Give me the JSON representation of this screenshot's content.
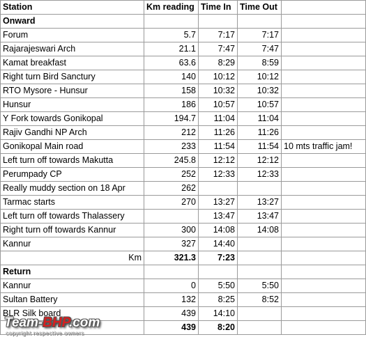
{
  "table": {
    "headers": [
      "Station",
      "Km reading",
      "Time In",
      "Time Out",
      ""
    ],
    "rows": [
      {
        "type": "section",
        "station": "Onward",
        "km": "",
        "in": "",
        "out": "",
        "note": ""
      },
      {
        "type": "data",
        "station": "Forum",
        "km": "5.7",
        "in": "7:17",
        "out": "7:17",
        "note": ""
      },
      {
        "type": "data",
        "station": "Rajarajeswari Arch",
        "km": "21.1",
        "in": "7:47",
        "out": "7:47",
        "note": ""
      },
      {
        "type": "data",
        "station": "Kamat breakfast",
        "km": "63.6",
        "in": "8:29",
        "out": "8:59",
        "note": ""
      },
      {
        "type": "data",
        "station": "Right turn Bird Sanctury",
        "km": "140",
        "in": "10:12",
        "out": "10:12",
        "note": ""
      },
      {
        "type": "data",
        "station": "RTO Mysore - Hunsur",
        "km": "158",
        "in": "10:32",
        "out": "10:32",
        "note": ""
      },
      {
        "type": "data",
        "station": "Hunsur",
        "km": "186",
        "in": "10:57",
        "out": "10:57",
        "note": ""
      },
      {
        "type": "data",
        "station": "Y Fork towards Gonikopal",
        "km": "194.7",
        "in": "11:04",
        "out": "11:04",
        "note": ""
      },
      {
        "type": "data",
        "station": "Rajiv Gandhi NP Arch",
        "km": "212",
        "in": "11:26",
        "out": "11:26",
        "note": ""
      },
      {
        "type": "data",
        "station": "Gonikopal Main road",
        "km": "233",
        "in": "11:54",
        "out": "11:54",
        "note": "10 mts traffic jam!"
      },
      {
        "type": "data",
        "station": "Left turn off towards Makutta",
        "km": "245.8",
        "in": "12:12",
        "out": "12:12",
        "note": ""
      },
      {
        "type": "data",
        "station": "Perumpady CP",
        "km": "252",
        "in": "12:33",
        "out": "12:33",
        "note": ""
      },
      {
        "type": "data",
        "station": "Really muddy section on 18 Apr",
        "km": "262",
        "in": "",
        "out": "",
        "note": ""
      },
      {
        "type": "data",
        "station": "Tarmac starts",
        "km": "270",
        "in": "13:27",
        "out": "13:27",
        "note": ""
      },
      {
        "type": "data",
        "station": "Left turn off towards Thalassery",
        "km": "",
        "in": "13:47",
        "out": "13:47",
        "note": ""
      },
      {
        "type": "data",
        "station": "Right turn off towards Kannur",
        "km": "300",
        "in": "14:08",
        "out": "14:08",
        "note": ""
      },
      {
        "type": "data",
        "station": "Kannur",
        "km": "327",
        "in": "14:40",
        "out": "",
        "note": ""
      },
      {
        "type": "total",
        "station": "Km",
        "km": "321.3",
        "in": "7:23",
        "out": "",
        "note": ""
      },
      {
        "type": "section",
        "station": "Return",
        "km": "",
        "in": "",
        "out": "",
        "note": ""
      },
      {
        "type": "data",
        "station": "Kannur",
        "km": "0",
        "in": "5:50",
        "out": "5:50",
        "note": ""
      },
      {
        "type": "data",
        "station": "Sultan Battery",
        "km": "132",
        "in": "8:25",
        "out": "8:52",
        "note": ""
      },
      {
        "type": "data",
        "station": "BLR Silk board",
        "km": "439",
        "in": "14:10",
        "out": "",
        "note": ""
      },
      {
        "type": "total",
        "station": "",
        "km": "439",
        "in": "8:20",
        "out": "",
        "note": ""
      }
    ]
  },
  "watermark": {
    "brand_part1": "Team-",
    "brand_part2": "BHP",
    "brand_part3": ".com",
    "subtext": "copyright respective owners"
  }
}
